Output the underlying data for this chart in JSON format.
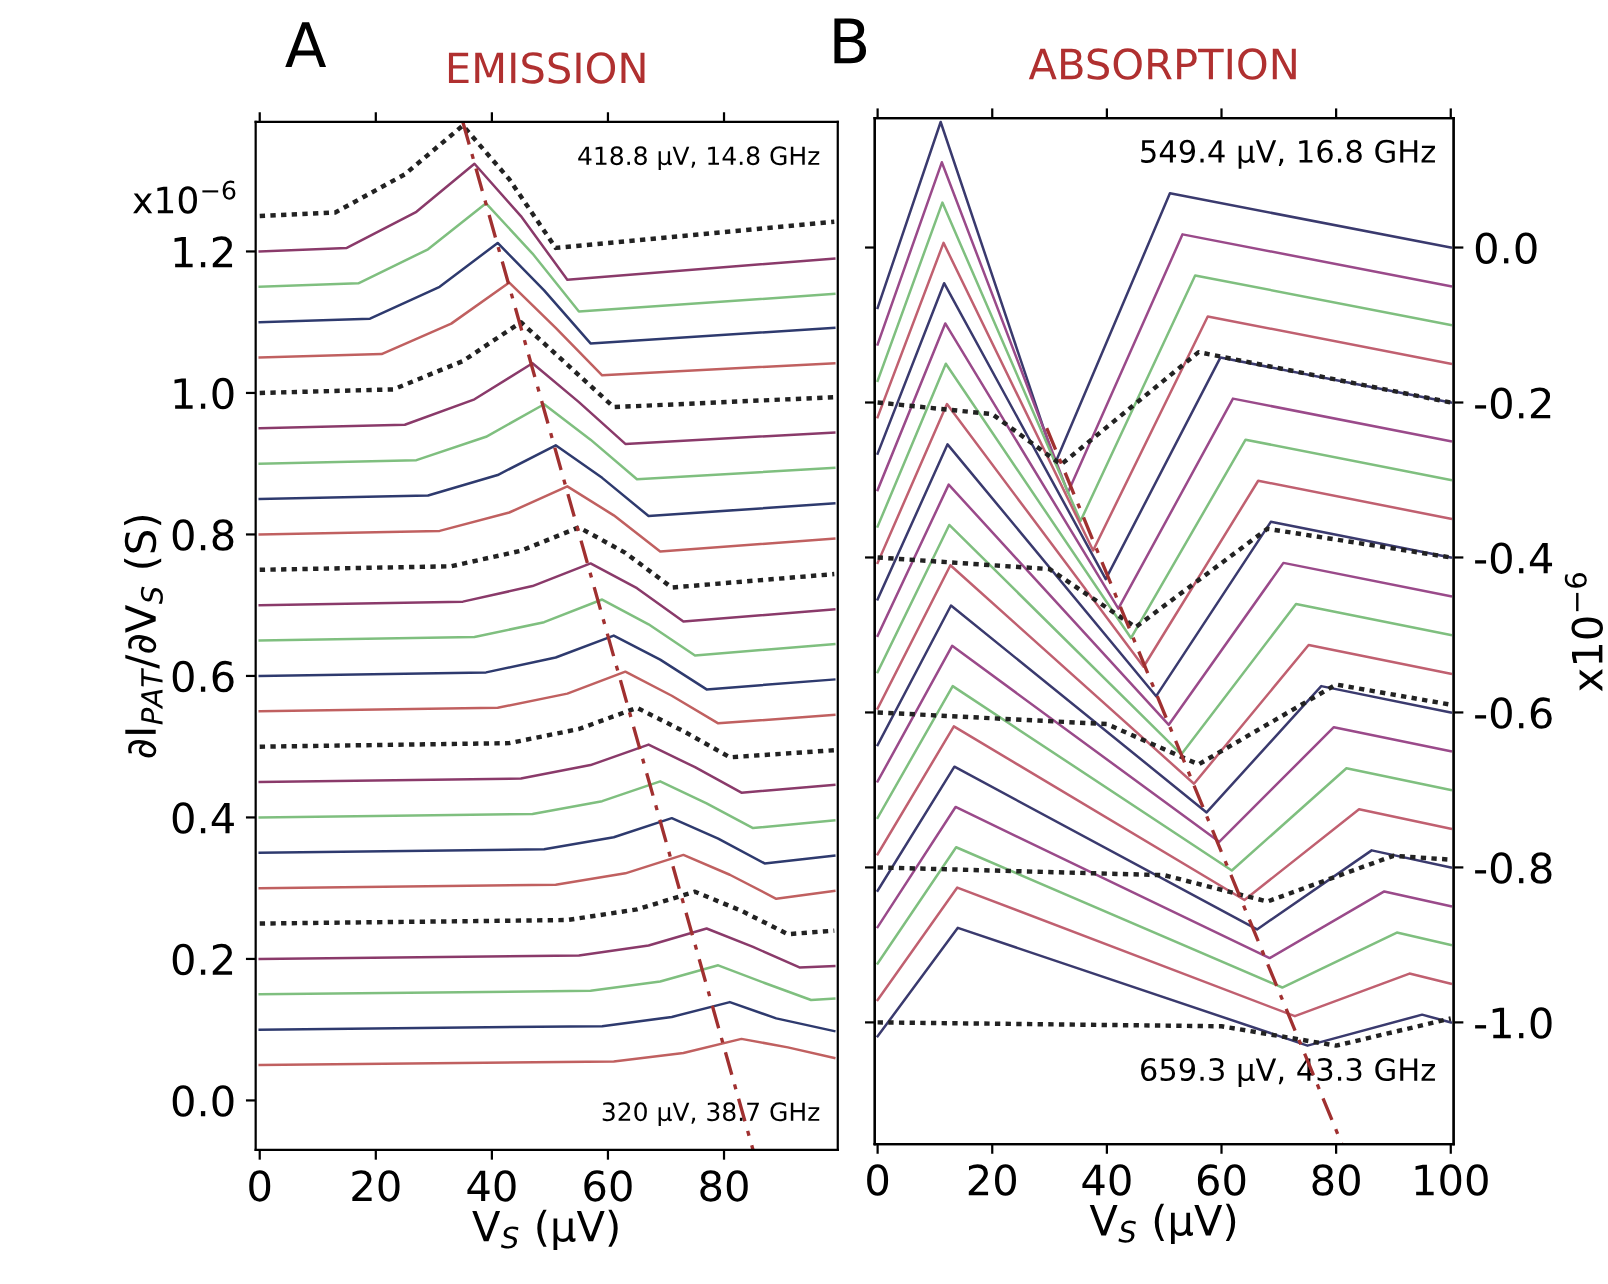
{
  "chart_data": [
    {
      "type": "line",
      "title": "EMISSION",
      "xlabel": "V$_{S}$ (μV)",
      "ylabel": "∂I$_{PAT}$/∂V$_{S}$ (S)",
      "annotations": [
        "A",
        "418.8 μV, 14.8 GHz",
        "320 μV, 38.7 GHz",
        "x10$^{−6}$"
      ],
      "xlim": [
        -0.7,
        99.6
      ],
      "ylim": [
        -0.07,
        1.383
      ],
      "xticks": [
        0,
        20,
        40,
        60,
        80
      ],
      "yticks": [
        {
          "value": 0,
          "label": "0.0"
        },
        0.2,
        0.4,
        0.6,
        0.8,
        {
          "value": 1,
          "label": "1.0"
        },
        1.2
      ],
      "series": [
        {
          "color": "#222222",
          "line_style": "dotted",
          "x": [
            0,
            13,
            25,
            35,
            43,
            51,
            99
          ],
          "values": [
            1.25,
            1.255,
            1.309,
            1.378,
            1.302,
            1.205,
            1.242
          ]
        },
        {
          "color": "#8a3a6a",
          "x": [
            0,
            15,
            27,
            37,
            45,
            53,
            99
          ],
          "values": [
            1.2,
            1.205,
            1.256,
            1.324,
            1.25,
            1.16,
            1.19
          ]
        },
        {
          "color": "#7fbf7f",
          "x": [
            0,
            17,
            29,
            39,
            47,
            55,
            99
          ],
          "values": [
            1.15,
            1.155,
            1.203,
            1.268,
            1.197,
            1.115,
            1.14
          ]
        },
        {
          "color": "#2e3a6e",
          "x": [
            0,
            19,
            31,
            41,
            49,
            57,
            99
          ],
          "values": [
            1.1,
            1.105,
            1.15,
            1.212,
            1.145,
            1.07,
            1.092
          ]
        },
        {
          "color": "#c06060",
          "x": [
            0,
            21,
            33,
            43,
            51,
            59,
            99
          ],
          "values": [
            1.05,
            1.055,
            1.098,
            1.156,
            1.092,
            1.025,
            1.042
          ]
        },
        {
          "color": "#222222",
          "line_style": "dotted",
          "x": [
            0,
            23,
            35,
            45,
            53,
            61,
            99
          ],
          "values": [
            1.0,
            1.005,
            1.045,
            1.1,
            1.04,
            0.98,
            0.994
          ]
        },
        {
          "color": "#8a3a6a",
          "x": [
            0,
            25,
            37,
            47,
            55,
            63,
            99
          ],
          "values": [
            0.95,
            0.955,
            0.991,
            1.042,
            0.987,
            0.928,
            0.944
          ]
        },
        {
          "color": "#7fbf7f",
          "x": [
            0,
            27,
            39,
            49,
            57,
            65,
            99
          ],
          "values": [
            0.9,
            0.905,
            0.938,
            0.984,
            0.934,
            0.878,
            0.894
          ]
        },
        {
          "color": "#2e3a6e",
          "x": [
            0,
            29,
            41,
            51,
            59,
            67,
            99
          ],
          "values": [
            0.85,
            0.855,
            0.884,
            0.926,
            0.88,
            0.826,
            0.844
          ]
        },
        {
          "color": "#c06060",
          "x": [
            0,
            31,
            43,
            53,
            61,
            69,
            99
          ],
          "values": [
            0.8,
            0.805,
            0.831,
            0.868,
            0.827,
            0.776,
            0.794
          ]
        },
        {
          "color": "#222222",
          "line_style": "dotted",
          "x": [
            0,
            33,
            45,
            55,
            63,
            71,
            99
          ],
          "values": [
            0.75,
            0.755,
            0.777,
            0.81,
            0.774,
            0.725,
            0.744
          ]
        },
        {
          "color": "#8a3a6a",
          "x": [
            0,
            35,
            47,
            57,
            65,
            73,
            99
          ],
          "values": [
            0.7,
            0.705,
            0.727,
            0.759,
            0.724,
            0.677,
            0.694
          ]
        },
        {
          "color": "#7fbf7f",
          "x": [
            0,
            37,
            49,
            59,
            67,
            75,
            99
          ],
          "values": [
            0.65,
            0.655,
            0.676,
            0.708,
            0.673,
            0.629,
            0.645
          ]
        },
        {
          "color": "#2e3a6e",
          "x": [
            0,
            39,
            51,
            61,
            69,
            77,
            99
          ],
          "values": [
            0.6,
            0.605,
            0.626,
            0.657,
            0.623,
            0.581,
            0.595
          ]
        },
        {
          "color": "#c06060",
          "x": [
            0,
            41,
            53,
            63,
            71,
            79,
            99
          ],
          "values": [
            0.55,
            0.555,
            0.575,
            0.606,
            0.572,
            0.533,
            0.545
          ]
        },
        {
          "color": "#222222",
          "line_style": "dotted",
          "x": [
            0,
            43,
            55,
            65,
            73,
            81,
            99
          ],
          "values": [
            0.5,
            0.505,
            0.525,
            0.555,
            0.522,
            0.485,
            0.495
          ]
        },
        {
          "color": "#8a3a6a",
          "x": [
            0,
            45,
            57,
            67,
            75,
            83,
            99
          ],
          "values": [
            0.45,
            0.455,
            0.474,
            0.503,
            0.471,
            0.435,
            0.446
          ]
        },
        {
          "color": "#7fbf7f",
          "x": [
            0,
            47,
            59,
            69,
            77,
            85,
            99
          ],
          "values": [
            0.4,
            0.405,
            0.423,
            0.451,
            0.42,
            0.385,
            0.396
          ]
        },
        {
          "color": "#2e3a6e",
          "x": [
            0,
            49,
            61,
            71,
            79,
            87,
            99
          ],
          "values": [
            0.35,
            0.355,
            0.372,
            0.399,
            0.37,
            0.335,
            0.346
          ]
        },
        {
          "color": "#c06060",
          "x": [
            0,
            51,
            63,
            73,
            81,
            89,
            99
          ],
          "values": [
            0.3,
            0.305,
            0.321,
            0.347,
            0.319,
            0.285,
            0.296
          ]
        },
        {
          "color": "#222222",
          "line_style": "dotted",
          "x": [
            0,
            53,
            65,
            75,
            83,
            91,
            99
          ],
          "values": [
            0.25,
            0.255,
            0.27,
            0.295,
            0.268,
            0.235,
            0.24
          ]
        },
        {
          "color": "#8a3a6a",
          "x": [
            0,
            55,
            67,
            77,
            85,
            93,
            99
          ],
          "values": [
            0.2,
            0.205,
            0.219,
            0.243,
            0.217,
            0.188,
            0.19
          ]
        },
        {
          "color": "#7fbf7f",
          "x": [
            0,
            57,
            69,
            79,
            87,
            95,
            99
          ],
          "values": [
            0.15,
            0.155,
            0.168,
            0.191,
            0.166,
            0.142,
            0.144
          ]
        },
        {
          "color": "#2e3a6e",
          "x": [
            0,
            59,
            71,
            81,
            89,
            99
          ],
          "values": [
            0.1,
            0.105,
            0.118,
            0.139,
            0.116,
            0.098
          ]
        },
        {
          "color": "#c06060",
          "x": [
            0,
            61,
            73,
            83,
            91,
            99
          ],
          "values": [
            0.05,
            0.055,
            0.067,
            0.087,
            0.075,
            0.06
          ]
        },
        {
          "color": "#a03030",
          "line_style": "dashed",
          "x": [
            35,
            85
          ],
          "values": [
            1.383,
            -0.07
          ]
        }
      ]
    },
    {
      "type": "line",
      "title": "ABSORPTION",
      "xlabel": "V$_{S}$ (μV)",
      "y2label": "x10$^{−6}$",
      "annotations": [
        "B",
        "549.4 μV, 16.8 GHz",
        "659.3 μV, 43.3 GHz"
      ],
      "xlim": [
        -0.5,
        100.5
      ],
      "y2lim": [
        -1.157,
        0.167
      ],
      "xticks": [
        0,
        20,
        40,
        60,
        80,
        100
      ],
      "y2ticks": [
        {
          "value": 0,
          "label": "0.0"
        },
        {
          "value": -0.2,
          "label": "-0.2"
        },
        {
          "value": -0.4,
          "label": "-0.4"
        },
        {
          "value": -0.6,
          "label": "-0.6"
        },
        {
          "value": -0.8,
          "label": "-0.8"
        },
        {
          "value": -1,
          "label": "-1.0"
        }
      ],
      "tick_labels": "x",
      "series": [
        {
          "axis": "y2",
          "color": "#3a3a6e",
          "x": [
            0,
            11,
            31,
            51,
            100
          ],
          "values": [
            -0.078,
            0.162,
            -0.278,
            0.07,
            0.0
          ]
        },
        {
          "axis": "y2",
          "color": "#9a4a8a",
          "x": [
            0,
            11.2,
            33.2,
            53.2,
            100
          ],
          "values": [
            -0.125,
            0.11,
            -0.316,
            0.017,
            -0.05
          ]
        },
        {
          "axis": "y2",
          "color": "#7fbf7f",
          "x": [
            0,
            11.3,
            35.4,
            55.4,
            100
          ],
          "values": [
            -0.172,
            0.058,
            -0.353,
            -0.036,
            -0.1
          ]
        },
        {
          "axis": "y2",
          "color": "#c06070",
          "x": [
            0,
            11.5,
            37.6,
            57.6,
            100
          ],
          "values": [
            -0.219,
            0.006,
            -0.391,
            -0.089,
            -0.15
          ]
        },
        {
          "axis": "y2",
          "color": "#3a3a6e",
          "x": [
            0,
            11.6,
            39.8,
            59.8,
            100
          ],
          "values": [
            -0.266,
            -0.046,
            -0.428,
            -0.142,
            -0.2
          ]
        },
        {
          "axis": "y2",
          "color": "#9a4a8a",
          "x": [
            0,
            11.8,
            42,
            62,
            100
          ],
          "values": [
            -0.313,
            -0.098,
            -0.466,
            -0.195,
            -0.25
          ]
        },
        {
          "axis": "y2",
          "color": "#7fbf7f",
          "x": [
            0,
            11.9,
            44.2,
            64.2,
            100
          ],
          "values": [
            -0.36,
            -0.15,
            -0.504,
            -0.248,
            -0.3
          ]
        },
        {
          "axis": "y2",
          "color": "#c06070",
          "x": [
            0,
            12.1,
            46.4,
            66.4,
            100
          ],
          "values": [
            -0.407,
            -0.202,
            -0.541,
            -0.301,
            -0.35
          ]
        },
        {
          "axis": "y2",
          "color": "#3a3a6e",
          "x": [
            0,
            12.2,
            48.6,
            68.6,
            100
          ],
          "values": [
            -0.454,
            -0.254,
            -0.579,
            -0.354,
            -0.4
          ]
        },
        {
          "axis": "y2",
          "color": "#9a4a8a",
          "x": [
            0,
            12.4,
            50.8,
            70.8,
            100
          ],
          "values": [
            -0.501,
            -0.306,
            -0.616,
            -0.407,
            -0.45
          ]
        },
        {
          "axis": "y2",
          "color": "#7fbf7f",
          "x": [
            0,
            12.5,
            53,
            73,
            100
          ],
          "values": [
            -0.548,
            -0.358,
            -0.654,
            -0.46,
            -0.5
          ]
        },
        {
          "axis": "y2",
          "color": "#c06070",
          "x": [
            0,
            12.7,
            55.2,
            75.2,
            100
          ],
          "values": [
            -0.595,
            -0.41,
            -0.692,
            -0.513,
            -0.55
          ]
        },
        {
          "axis": "y2",
          "color": "#3a3a6e",
          "x": [
            0,
            12.8,
            57.4,
            77.4,
            100
          ],
          "values": [
            -0.642,
            -0.462,
            -0.729,
            -0.566,
            -0.6
          ]
        },
        {
          "axis": "y2",
          "color": "#9a4a8a",
          "x": [
            0,
            13,
            59.6,
            79.6,
            100
          ],
          "values": [
            -0.689,
            -0.514,
            -0.767,
            -0.619,
            -0.65
          ]
        },
        {
          "axis": "y2",
          "color": "#7fbf7f",
          "x": [
            0,
            13.1,
            61.8,
            81.8,
            100
          ],
          "values": [
            -0.736,
            -0.566,
            -0.804,
            -0.672,
            -0.7
          ]
        },
        {
          "axis": "y2",
          "color": "#c06070",
          "x": [
            0,
            13.3,
            64,
            84,
            100
          ],
          "values": [
            -0.783,
            -0.618,
            -0.842,
            -0.725,
            -0.75
          ]
        },
        {
          "axis": "y2",
          "color": "#3a3a6e",
          "x": [
            0,
            13.4,
            66.2,
            86.2,
            100
          ],
          "values": [
            -0.83,
            -0.67,
            -0.88,
            -0.778,
            -0.8
          ]
        },
        {
          "axis": "y2",
          "color": "#9a4a8a",
          "x": [
            0,
            13.6,
            68.4,
            88.4,
            100
          ],
          "values": [
            -0.877,
            -0.722,
            -0.917,
            -0.831,
            -0.85
          ]
        },
        {
          "axis": "y2",
          "color": "#7fbf7f",
          "x": [
            0,
            13.7,
            70.6,
            90.6,
            100
          ],
          "values": [
            -0.924,
            -0.774,
            -0.955,
            -0.884,
            -0.9
          ]
        },
        {
          "axis": "y2",
          "color": "#c06070",
          "x": [
            0,
            13.9,
            72.8,
            92.8,
            100
          ],
          "values": [
            -0.971,
            -0.826,
            -0.992,
            -0.937,
            -0.95
          ]
        },
        {
          "axis": "y2",
          "color": "#3a3a6e",
          "x": [
            0,
            14,
            75,
            95,
            100
          ],
          "values": [
            -1.018,
            -0.878,
            -1.03,
            -0.99,
            -1.0
          ]
        },
        {
          "axis": "y2",
          "color": "#222222",
          "line_style": "dotted",
          "x": [
            0,
            20,
            32,
            56,
            100
          ],
          "values": [
            -0.2,
            -0.215,
            -0.28,
            -0.135,
            -0.2
          ]
        },
        {
          "axis": "y2",
          "color": "#222222",
          "line_style": "dotted",
          "x": [
            0,
            30,
            45,
            68,
            100
          ],
          "values": [
            -0.4,
            -0.415,
            -0.49,
            -0.363,
            -0.4
          ]
        },
        {
          "axis": "y2",
          "color": "#222222",
          "line_style": "dotted",
          "x": [
            0,
            40,
            56,
            80,
            100
          ],
          "values": [
            -0.6,
            -0.615,
            -0.667,
            -0.564,
            -0.59
          ]
        },
        {
          "axis": "y2",
          "color": "#222222",
          "line_style": "dotted",
          "x": [
            0,
            50,
            68,
            90,
            100
          ],
          "values": [
            -0.8,
            -0.81,
            -0.844,
            -0.785,
            -0.79
          ]
        },
        {
          "axis": "y2",
          "color": "#222222",
          "line_style": "dotted",
          "x": [
            0,
            60,
            80,
            100
          ],
          "values": [
            -1.0,
            -1.005,
            -1.03,
            -0.995
          ]
        },
        {
          "axis": "y2",
          "color": "#a03030",
          "line_style": "dashed",
          "x": [
            29.5,
            81
          ],
          "values": [
            -0.233,
            -1.157
          ]
        }
      ]
    }
  ]
}
